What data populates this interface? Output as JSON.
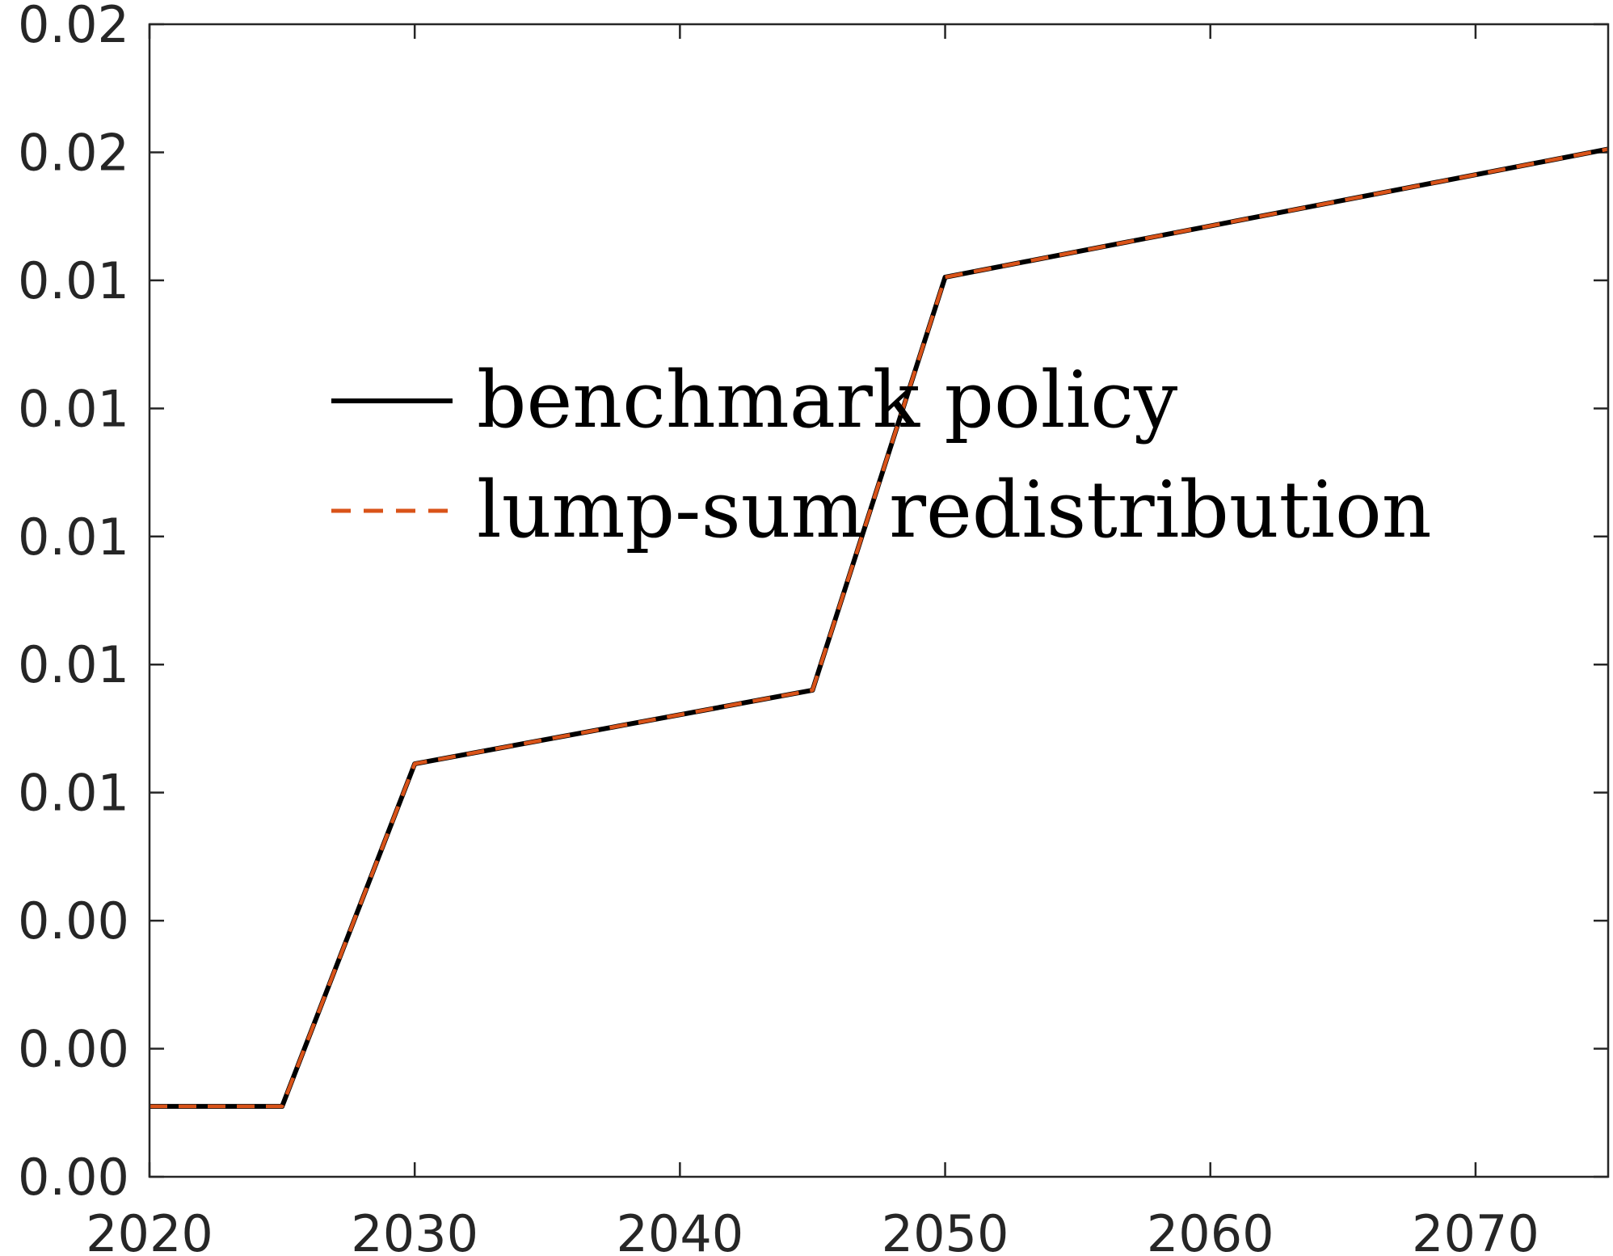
{
  "chart_data": {
    "type": "line",
    "title": "",
    "xlabel": "",
    "ylabel": "",
    "xlim": [
      2020,
      2075
    ],
    "ylim": [
      0,
      0.018
    ],
    "grid": false,
    "legend_position": "upper-middle-left",
    "x_ticks": [
      2020,
      2030,
      2040,
      2050,
      2060,
      2070
    ],
    "x_tick_labels": [
      "2020",
      "2030",
      "2040",
      "2050",
      "2060",
      "2070"
    ],
    "y_ticks": [
      0,
      0.002,
      0.004,
      0.006,
      0.008,
      0.01,
      0.012,
      0.014,
      0.016,
      0.018
    ],
    "y_tick_labels": [
      "0.00",
      "0.00",
      "0.00",
      "0.01",
      "0.01",
      "0.01",
      "0.01",
      "0.01",
      "0.02",
      "0.02"
    ],
    "series": [
      {
        "name": "benchmark policy",
        "color": "#000000",
        "style": "solid",
        "x": [
          2020,
          2025,
          2030,
          2045,
          2050,
          2075
        ],
        "y": [
          0.0011,
          0.0011,
          0.00645,
          0.0076,
          0.01405,
          0.01605
        ]
      },
      {
        "name": "lump-sum redistribution",
        "color": "#d95319",
        "style": "dashed",
        "x": [
          2020,
          2025,
          2030,
          2045,
          2050,
          2075
        ],
        "y": [
          0.0011,
          0.0011,
          0.00645,
          0.0076,
          0.01405,
          0.01605
        ]
      }
    ]
  }
}
